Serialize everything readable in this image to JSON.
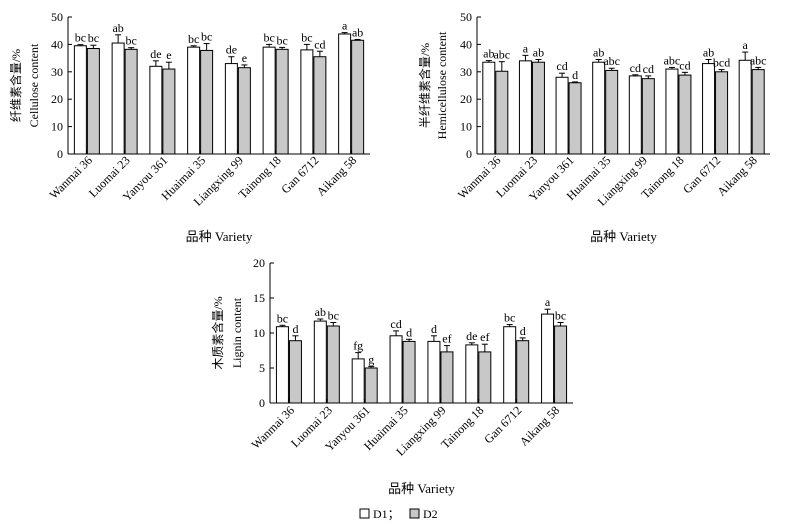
{
  "chart_data": [
    {
      "type": "bar",
      "title": "",
      "ylabel_cn": "纤维素含量/%",
      "ylabel_en": "Cellulose content",
      "xlabel": "品种 Variety",
      "ylim": [
        0,
        50
      ],
      "yticks": [
        0,
        10,
        20,
        30,
        40,
        50
      ],
      "categories": [
        "Wanmai 36",
        "Luomai 23",
        "Yanyou 361",
        "Huaimai 35",
        "Liangxing 99",
        "Tainong 18",
        "Gan 6712",
        "Aikang 58"
      ],
      "series": [
        {
          "name": "D1",
          "values": [
            39.5,
            40.5,
            32.0,
            39.0,
            33.0,
            39.0,
            38.0,
            43.8
          ],
          "errors": [
            0.4,
            3.0,
            2.0,
            0.5,
            2.5,
            1.0,
            2.0,
            0.5
          ],
          "labels": [
            "bc",
            "ab",
            "de",
            "bc",
            "de",
            "bc",
            "bc",
            "a"
          ]
        },
        {
          "name": "D2",
          "values": [
            38.5,
            38.2,
            31.0,
            37.8,
            31.5,
            38.2,
            35.5,
            41.5
          ],
          "errors": [
            1.2,
            0.6,
            2.5,
            2.5,
            1.0,
            0.7,
            2.0,
            0.3
          ],
          "labels": [
            "bc",
            "bc",
            "e",
            "bc",
            "e",
            "bc",
            "cd",
            "ab"
          ]
        }
      ]
    },
    {
      "type": "bar",
      "title": "",
      "ylabel_cn": "半纤维素含量/%",
      "ylabel_en": "Hemicellulose content",
      "xlabel": "品种 Variety",
      "ylim": [
        0,
        50
      ],
      "yticks": [
        0,
        10,
        20,
        30,
        40,
        50
      ],
      "categories": [
        "Wanmai 36",
        "Luomai 23",
        "Yanyou 361",
        "Huaimai 35",
        "Liangxing 99",
        "Tainong 18",
        "Gan 6712",
        "Aikang 58"
      ],
      "series": [
        {
          "name": "D1",
          "values": [
            33.5,
            34.0,
            28.0,
            33.5,
            28.5,
            31.0,
            33.0,
            34.2
          ],
          "errors": [
            0.6,
            2.0,
            1.5,
            1.0,
            0.4,
            0.6,
            1.5,
            3.0
          ],
          "labels": [
            "ab",
            "a",
            "cd",
            "ab",
            "cd",
            "abc",
            "ab",
            "a"
          ]
        },
        {
          "name": "D2",
          "values": [
            30.2,
            33.5,
            26.0,
            30.5,
            27.5,
            28.8,
            30.0,
            30.8
          ],
          "errors": [
            3.5,
            1.0,
            0.3,
            0.8,
            1.0,
            1.0,
            0.8,
            0.8
          ],
          "labels": [
            "abc",
            "ab",
            "d",
            "abc",
            "cd",
            "cd",
            "bcd",
            "abc"
          ]
        }
      ]
    },
    {
      "type": "bar",
      "title": "",
      "ylabel_cn": "木质素含量/%",
      "ylabel_en": "Lignin content",
      "xlabel": "品种 Variety",
      "ylim": [
        0,
        20
      ],
      "yticks": [
        0,
        5,
        10,
        15,
        20
      ],
      "categories": [
        "Wanmai 36",
        "Luomai 23",
        "Yanyou 361",
        "Huaimai 35",
        "Liangxing 99",
        "Tainong 18",
        "Gan 6712",
        "Aikang 58"
      ],
      "series": [
        {
          "name": "D1",
          "values": [
            10.9,
            11.7,
            6.3,
            9.6,
            8.8,
            8.3,
            10.9,
            12.7
          ],
          "errors": [
            0.2,
            0.3,
            0.9,
            0.7,
            0.8,
            0.3,
            0.3,
            0.7
          ],
          "labels": [
            "bc",
            "ab",
            "fg",
            "cd",
            "d",
            "de",
            "bc",
            "a"
          ]
        },
        {
          "name": "D2",
          "values": [
            8.9,
            11.0,
            5.0,
            8.8,
            7.3,
            7.3,
            8.9,
            11.0
          ],
          "errors": [
            0.7,
            0.5,
            0.2,
            0.3,
            0.9,
            1.1,
            0.4,
            0.5
          ],
          "labels": [
            "d",
            "bc",
            "g",
            "d",
            "ef",
            "ef",
            "d",
            "bc"
          ]
        }
      ]
    }
  ],
  "legend": {
    "items": [
      {
        "label": "D1；",
        "color": "#ffffff"
      },
      {
        "label": "D2",
        "color": "#c8c8c8"
      }
    ]
  },
  "colors": {
    "D1": "#ffffff",
    "D2": "#c8c8c8",
    "axis": "#000000"
  }
}
